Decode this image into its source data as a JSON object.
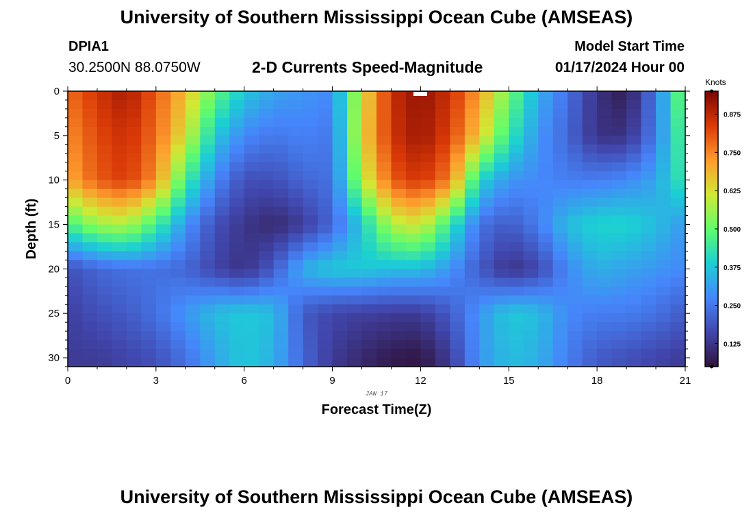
{
  "header": {
    "title": "University of Southern Mississippi Ocean Cube (AMSEAS)",
    "station": "DPIA1",
    "coords": "30.2500N  88.0750W",
    "subtitle": "2-D Currents Speed-Magnitude",
    "model_label": "Model Start Time",
    "model_time": "01/17/2024 Hour 00"
  },
  "footer": {
    "title": "University of Southern Mississippi Ocean Cube (AMSEAS)"
  },
  "chart_data": {
    "type": "heatmap",
    "title": "2-D Currents Speed-Magnitude",
    "xlabel": "Forecast Time(Z)",
    "ylabel": "Depth (ft)",
    "xlim": [
      0,
      21
    ],
    "ylim": [
      0,
      31
    ],
    "x_ticks": [
      "0",
      "3",
      "6",
      "9",
      "12",
      "15",
      "18",
      "21"
    ],
    "y_ticks": [
      "0",
      "5",
      "10",
      "15",
      "20",
      "25",
      "30"
    ],
    "date_annotation": "JAN 17",
    "colorbar": {
      "unit": "Knots",
      "range": [
        0.05,
        0.95
      ],
      "ticks": [
        "0.125",
        "0.250",
        "0.375",
        "0.500",
        "0.625",
        "0.750",
        "0.875"
      ],
      "colors": [
        "#30123b",
        "#4146ac",
        "#4686fb",
        "#1bcfd4",
        "#61fc6c",
        "#d1e834",
        "#fe9b2d",
        "#db3a07",
        "#7a0403"
      ]
    },
    "times": [
      0,
      1,
      2,
      3,
      4,
      5,
      6,
      7,
      8,
      9,
      10,
      11,
      12,
      13,
      14,
      15,
      16,
      17,
      18,
      19,
      20,
      21
    ],
    "depths": [
      0,
      5,
      10,
      15,
      20,
      25,
      30
    ],
    "speed_knots": [
      [
        0.78,
        0.85,
        0.9,
        0.8,
        0.68,
        0.5,
        0.38,
        0.32,
        0.3,
        0.28,
        0.62,
        0.86,
        0.92,
        0.86,
        0.72,
        0.52,
        0.34,
        0.24,
        0.12,
        0.07,
        0.25,
        0.55
      ],
      [
        0.74,
        0.82,
        0.86,
        0.78,
        0.62,
        0.38,
        0.28,
        0.25,
        0.27,
        0.25,
        0.64,
        0.85,
        0.91,
        0.83,
        0.66,
        0.44,
        0.3,
        0.22,
        0.12,
        0.12,
        0.26,
        0.5
      ],
      [
        0.7,
        0.8,
        0.84,
        0.74,
        0.46,
        0.28,
        0.18,
        0.18,
        0.22,
        0.24,
        0.58,
        0.8,
        0.85,
        0.76,
        0.4,
        0.3,
        0.28,
        0.26,
        0.26,
        0.28,
        0.32,
        0.45
      ],
      [
        0.46,
        0.56,
        0.58,
        0.46,
        0.3,
        0.18,
        0.13,
        0.1,
        0.14,
        0.22,
        0.38,
        0.58,
        0.62,
        0.44,
        0.24,
        0.2,
        0.26,
        0.36,
        0.4,
        0.4,
        0.36,
        0.3
      ],
      [
        0.18,
        0.22,
        0.24,
        0.24,
        0.22,
        0.16,
        0.12,
        0.2,
        0.34,
        0.38,
        0.38,
        0.36,
        0.36,
        0.3,
        0.2,
        0.12,
        0.16,
        0.28,
        0.34,
        0.32,
        0.3,
        0.28
      ],
      [
        0.15,
        0.18,
        0.2,
        0.24,
        0.3,
        0.36,
        0.38,
        0.36,
        0.2,
        0.16,
        0.15,
        0.14,
        0.14,
        0.2,
        0.3,
        0.38,
        0.36,
        0.28,
        0.26,
        0.26,
        0.24,
        0.2
      ],
      [
        0.14,
        0.14,
        0.16,
        0.18,
        0.24,
        0.32,
        0.38,
        0.34,
        0.22,
        0.14,
        0.1,
        0.07,
        0.06,
        0.14,
        0.3,
        0.36,
        0.34,
        0.26,
        0.2,
        0.18,
        0.16,
        0.14
      ]
    ]
  }
}
